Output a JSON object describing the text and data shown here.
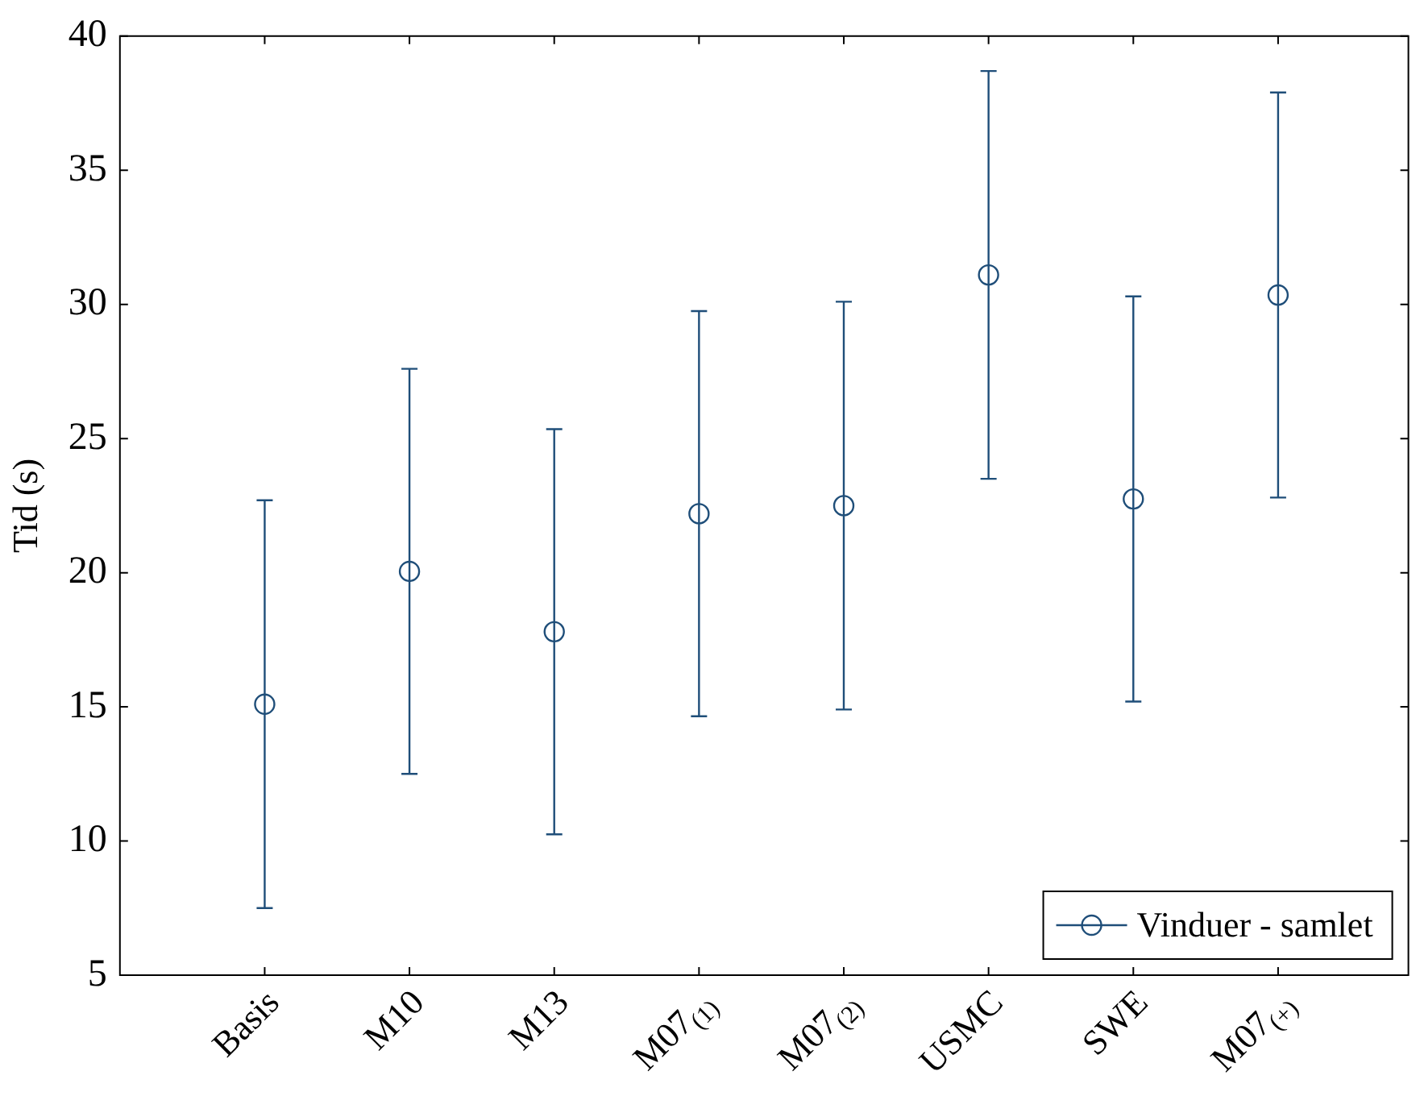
{
  "chart_data": {
    "type": "scatter",
    "ylabel": "Tid (s)",
    "categories": [
      "Basis",
      "M10",
      "M13",
      "M07$_{(1)}$",
      "M07$_{(2)}$",
      "USMC",
      "SWE",
      "M07$_{(+)}$"
    ],
    "series": [
      {
        "name": "Vinduer - samlet",
        "color": "#1f4e79",
        "values": [
          15.1,
          20.05,
          17.8,
          22.2,
          22.5,
          31.1,
          22.75,
          30.35
        ],
        "errors": [
          7.6,
          7.55,
          7.55,
          7.55,
          7.6,
          7.6,
          7.55,
          7.55
        ]
      }
    ],
    "ylim": [
      5,
      40
    ],
    "yticks": [
      5,
      10,
      15,
      20,
      25,
      30,
      35,
      40
    ],
    "grid": false,
    "legend": "bottom right",
    "marker": "circle"
  }
}
